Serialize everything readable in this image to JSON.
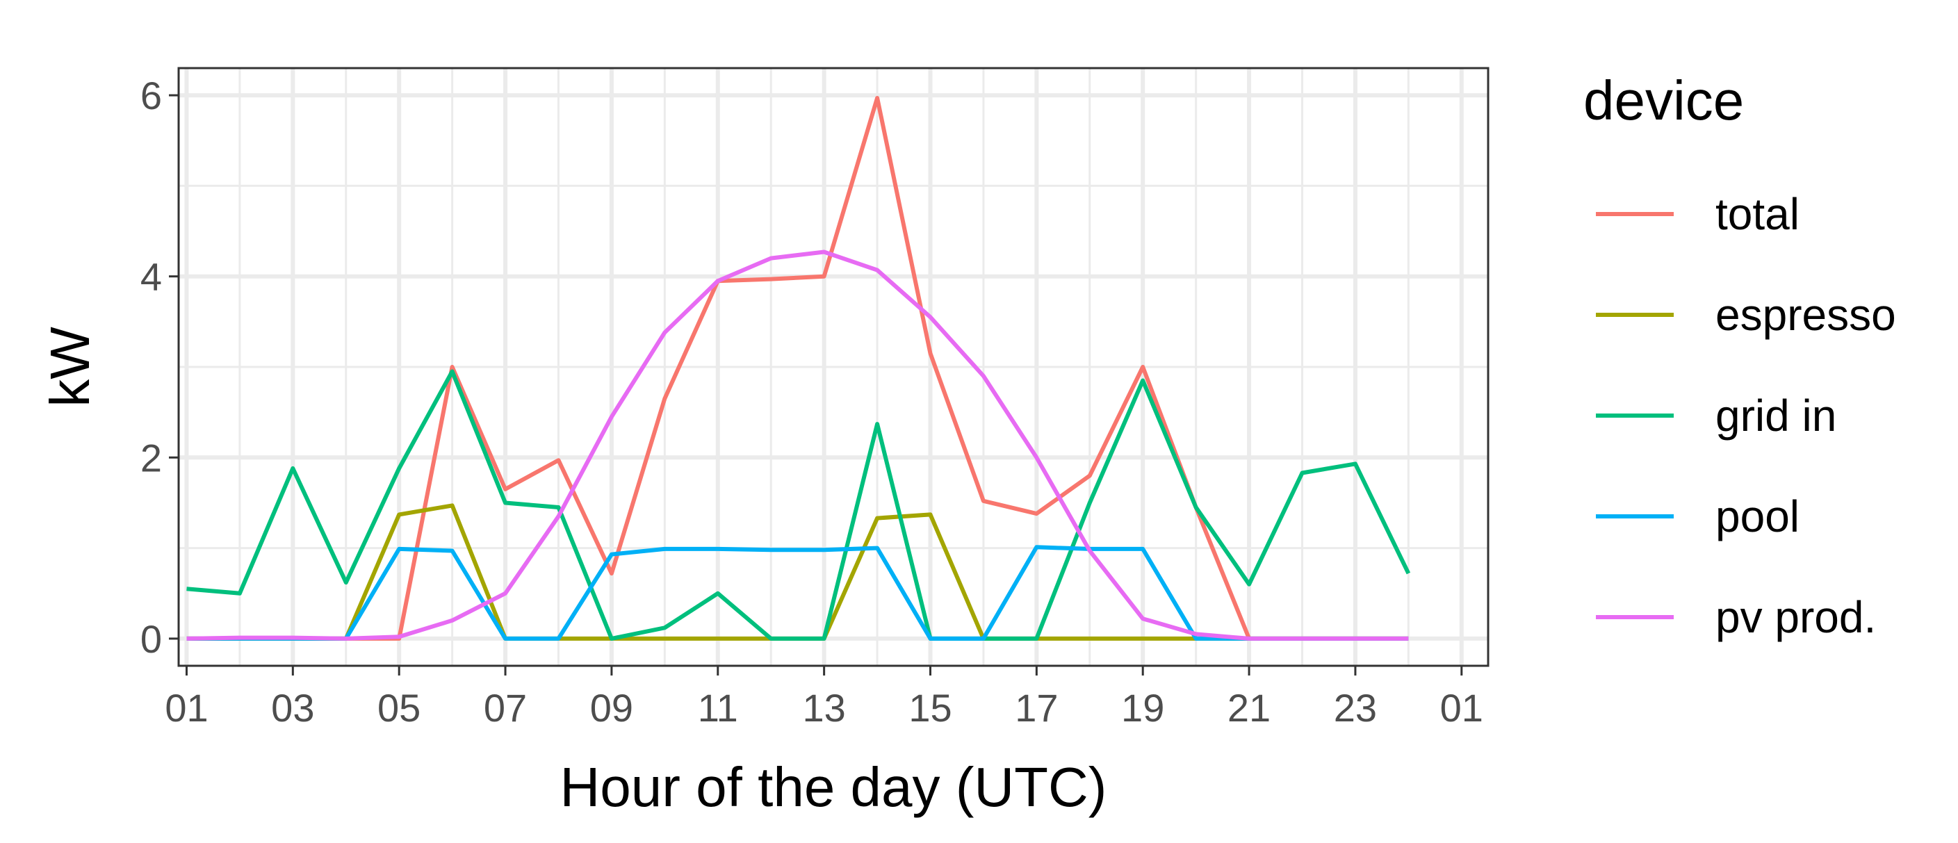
{
  "chart_data": {
    "type": "line",
    "xlabel": "Hour of the day (UTC)",
    "ylabel": "kW",
    "xlim": [
      1,
      25
    ],
    "ylim": [
      0,
      6
    ],
    "x_tick_labels": [
      "01",
      "03",
      "05",
      "07",
      "09",
      "11",
      "13",
      "15",
      "17",
      "19",
      "21",
      "23",
      "01"
    ],
    "y_tick_labels": [
      "0",
      "2",
      "4",
      "6"
    ],
    "grid": true,
    "legend": {
      "title": "device",
      "position": "right"
    },
    "x": [
      1,
      2,
      3,
      4,
      5,
      6,
      7,
      8,
      9,
      10,
      11,
      12,
      13,
      14,
      15,
      16,
      17,
      18,
      19,
      20,
      21,
      22,
      23,
      24
    ],
    "series": [
      {
        "name": "total",
        "color": "#F8766D",
        "values": [
          0,
          0,
          0,
          0,
          0,
          3.0,
          1.65,
          1.97,
          0.72,
          2.65,
          3.95,
          3.97,
          4.0,
          5.97,
          3.15,
          1.52,
          1.38,
          1.8,
          3.0,
          1.45,
          0,
          0,
          0,
          0
        ]
      },
      {
        "name": "espresso",
        "color": "#A3A500",
        "values": [
          0,
          0,
          0,
          0,
          1.37,
          1.47,
          0,
          0,
          0,
          0,
          0,
          0,
          0,
          1.33,
          1.37,
          0,
          0,
          0,
          0,
          0,
          0,
          0,
          0,
          0
        ]
      },
      {
        "name": "grid in",
        "color": "#00BF7D",
        "values": [
          0.55,
          0.5,
          1.88,
          0.62,
          1.88,
          2.95,
          1.5,
          1.45,
          0,
          0.12,
          0.5,
          0,
          0,
          2.37,
          0,
          0,
          0,
          1.5,
          2.85,
          1.45,
          0.6,
          1.83,
          1.93,
          0.72
        ]
      },
      {
        "name": "pool",
        "color": "#00B0F6",
        "values": [
          0,
          0,
          0,
          0,
          0.99,
          0.97,
          0,
          0,
          0.93,
          0.99,
          0.99,
          0.98,
          0.98,
          1.0,
          0,
          0,
          1.01,
          0.99,
          0.99,
          0,
          0,
          0,
          0,
          0
        ]
      },
      {
        "name": "pv prod.",
        "color": "#E76BF3",
        "values": [
          0,
          0.01,
          0.01,
          0,
          0.02,
          0.2,
          0.5,
          1.35,
          2.45,
          3.38,
          3.95,
          4.2,
          4.27,
          4.07,
          3.55,
          2.9,
          2.0,
          0.97,
          0.22,
          0.05,
          0,
          0,
          0,
          0
        ]
      }
    ]
  }
}
